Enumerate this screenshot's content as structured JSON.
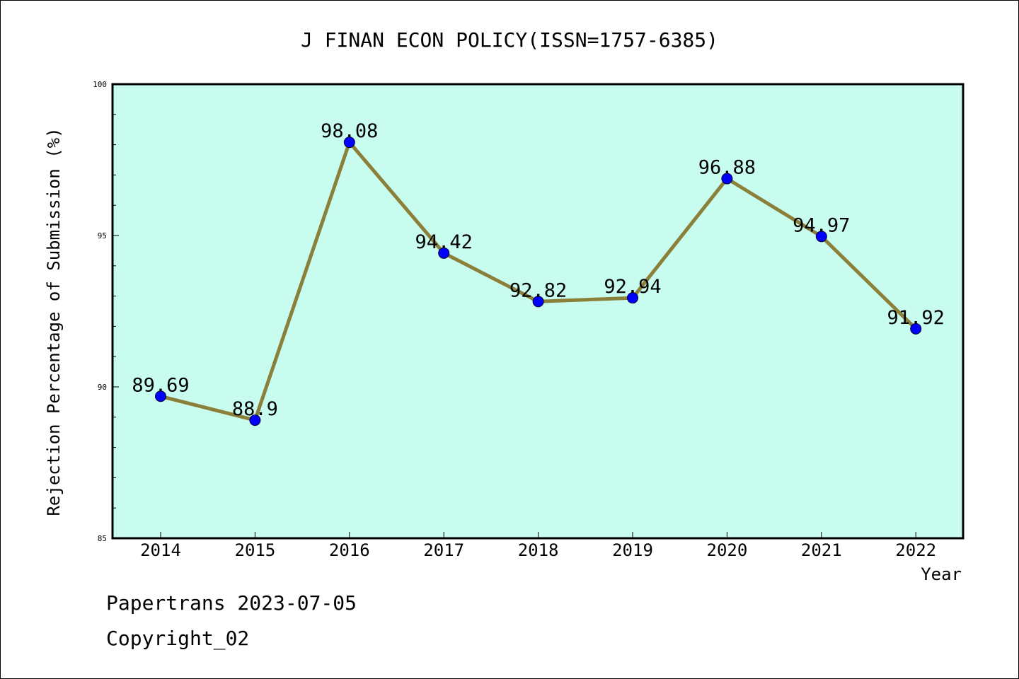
{
  "chart_data": {
    "type": "line",
    "title": "J FINAN ECON POLICY(ISSN=1757-6385)",
    "xlabel": "Year",
    "ylabel": "Rejection Percentage of Submission (%)",
    "ylim": [
      85,
      100
    ],
    "y_ticks": [
      85,
      90,
      95,
      100
    ],
    "y_tick_labels": [
      "85",
      "90",
      "95",
      "100"
    ],
    "categories": [
      "2014",
      "2015",
      "2016",
      "2017",
      "2018",
      "2019",
      "2020",
      "2021",
      "2022"
    ],
    "values": [
      89.69,
      88.9,
      98.08,
      94.42,
      92.82,
      92.94,
      96.88,
      94.97,
      91.92
    ],
    "data_labels": [
      "89.69",
      "88.9",
      "98.08",
      "94.42",
      "92.82",
      "92.94",
      "96.88",
      "94.97",
      "91.92"
    ],
    "grid": false,
    "colors": {
      "plot_background": "#c8fcee",
      "line": "#8b803a",
      "marker": "#0000ff"
    }
  },
  "footer": {
    "line1": "Papertrans 2023-07-05",
    "line2": "Copyright_02"
  }
}
